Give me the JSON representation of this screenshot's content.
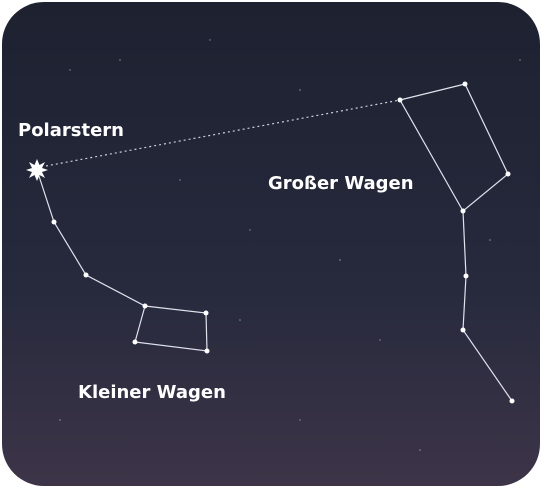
{
  "labels": {
    "polaris": "Polarstern",
    "big_dipper": "Großer Wagen",
    "little_dipper": "Kleiner Wagen"
  }
}
